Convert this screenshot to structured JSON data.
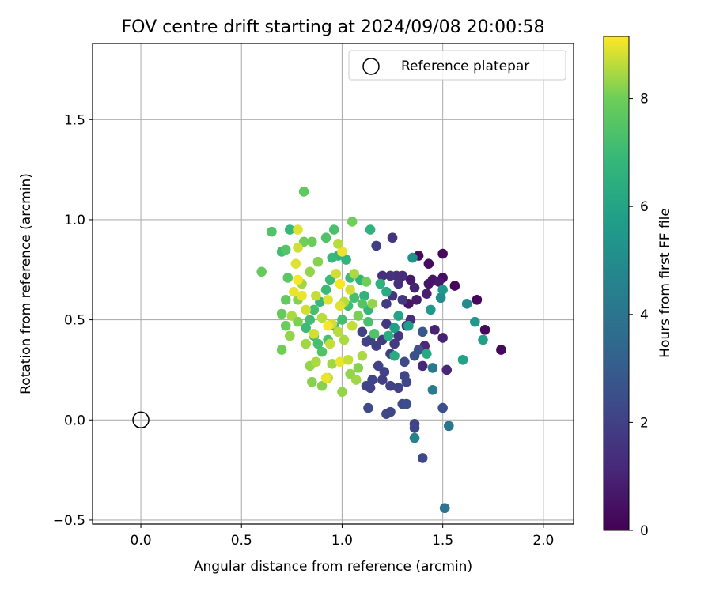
{
  "chart_data": {
    "type": "scatter",
    "title": "FOV centre drift starting at 2024/09/08 20:00:58",
    "xlabel": "Angular distance from reference (arcmin)",
    "ylabel": "Rotation from reference (arcmin)",
    "xlim": [
      -0.24,
      2.15
    ],
    "ylim": [
      -0.52,
      1.88
    ],
    "xticks": [
      0.0,
      0.5,
      1.0,
      1.5,
      2.0
    ],
    "xtick_labels": [
      "0.0",
      "0.5",
      "1.0",
      "1.5",
      "2.0"
    ],
    "yticks": [
      -0.5,
      0.0,
      0.5,
      1.0,
      1.5
    ],
    "ytick_labels": [
      "−0.5",
      "0.0",
      "0.5",
      "1.0",
      "1.5"
    ],
    "grid": true,
    "legend": {
      "position": "top-right",
      "entries": [
        "Reference platepar"
      ]
    },
    "reference_point": {
      "x": 0.0,
      "y": 0.0,
      "label": "Reference platepar"
    },
    "colorbar": {
      "label": "Hours from first FF file",
      "colormap": "viridis",
      "range": [
        0,
        9.15
      ],
      "ticks": [
        0,
        2,
        4,
        6,
        8
      ],
      "tick_labels": [
        "0",
        "2",
        "4",
        "6",
        "8"
      ]
    },
    "points": [
      {
        "x": 1.38,
        "y": 0.82,
        "h": 0.3
      },
      {
        "x": 1.43,
        "y": 0.78,
        "h": 0.3
      },
      {
        "x": 1.5,
        "y": 0.83,
        "h": 0.2
      },
      {
        "x": 1.56,
        "y": 0.67,
        "h": 0.2
      },
      {
        "x": 1.67,
        "y": 0.6,
        "h": 0.2
      },
      {
        "x": 1.71,
        "y": 0.45,
        "h": 0.2
      },
      {
        "x": 1.79,
        "y": 0.35,
        "h": 0.2
      },
      {
        "x": 1.5,
        "y": 0.71,
        "h": 0.4
      },
      {
        "x": 1.45,
        "y": 0.7,
        "h": 0.6
      },
      {
        "x": 1.43,
        "y": 0.68,
        "h": 0.6
      },
      {
        "x": 1.34,
        "y": 0.7,
        "h": 0.7
      },
      {
        "x": 1.33,
        "y": 0.58,
        "h": 0.6
      },
      {
        "x": 1.37,
        "y": 0.6,
        "h": 0.8
      },
      {
        "x": 1.42,
        "y": 0.63,
        "h": 0.9
      },
      {
        "x": 1.48,
        "y": 0.69,
        "h": 0.7
      },
      {
        "x": 1.5,
        "y": 0.41,
        "h": 1.0
      },
      {
        "x": 1.46,
        "y": 0.45,
        "h": 1.0
      },
      {
        "x": 1.41,
        "y": 0.37,
        "h": 1.2
      },
      {
        "x": 1.4,
        "y": 0.27,
        "h": 1.1
      },
      {
        "x": 1.52,
        "y": 0.25,
        "h": 1.1
      },
      {
        "x": 1.36,
        "y": 0.66,
        "h": 1.0
      },
      {
        "x": 1.34,
        "y": 0.5,
        "h": 1.3
      },
      {
        "x": 1.3,
        "y": 0.72,
        "h": 1.3
      },
      {
        "x": 1.27,
        "y": 0.72,
        "h": 1.3
      },
      {
        "x": 1.24,
        "y": 0.72,
        "h": 1.5
      },
      {
        "x": 1.2,
        "y": 0.72,
        "h": 1.3
      },
      {
        "x": 1.25,
        "y": 0.91,
        "h": 1.6
      },
      {
        "x": 1.17,
        "y": 0.87,
        "h": 1.9
      },
      {
        "x": 1.28,
        "y": 0.68,
        "h": 1.4
      },
      {
        "x": 1.25,
        "y": 0.62,
        "h": 1.6
      },
      {
        "x": 1.22,
        "y": 0.58,
        "h": 1.8
      },
      {
        "x": 1.3,
        "y": 0.6,
        "h": 1.7
      },
      {
        "x": 1.32,
        "y": 0.47,
        "h": 1.5
      },
      {
        "x": 1.28,
        "y": 0.42,
        "h": 1.7
      },
      {
        "x": 1.22,
        "y": 0.48,
        "h": 1.7
      },
      {
        "x": 1.26,
        "y": 0.38,
        "h": 1.8
      },
      {
        "x": 1.24,
        "y": 0.33,
        "h": 1.9
      },
      {
        "x": 1.2,
        "y": 0.4,
        "h": 1.8
      },
      {
        "x": 1.17,
        "y": 0.37,
        "h": 1.9
      },
      {
        "x": 1.14,
        "y": 0.4,
        "h": 2.0
      },
      {
        "x": 1.12,
        "y": 0.39,
        "h": 2.0
      },
      {
        "x": 1.1,
        "y": 0.44,
        "h": 2.0
      },
      {
        "x": 1.18,
        "y": 0.27,
        "h": 2.0
      },
      {
        "x": 1.21,
        "y": 0.24,
        "h": 2.1
      },
      {
        "x": 1.15,
        "y": 0.2,
        "h": 2.2
      },
      {
        "x": 1.12,
        "y": 0.17,
        "h": 2.2
      },
      {
        "x": 1.14,
        "y": 0.16,
        "h": 2.0
      },
      {
        "x": 1.2,
        "y": 0.2,
        "h": 1.9
      },
      {
        "x": 1.24,
        "y": 0.17,
        "h": 2.0
      },
      {
        "x": 1.28,
        "y": 0.16,
        "h": 2.1
      },
      {
        "x": 1.31,
        "y": 0.22,
        "h": 2.2
      },
      {
        "x": 1.32,
        "y": 0.19,
        "h": 2.3
      },
      {
        "x": 1.3,
        "y": 0.08,
        "h": 2.4
      },
      {
        "x": 1.32,
        "y": 0.08,
        "h": 2.5
      },
      {
        "x": 1.22,
        "y": 0.03,
        "h": 2.3
      },
      {
        "x": 1.24,
        "y": 0.04,
        "h": 2.2
      },
      {
        "x": 1.13,
        "y": 0.06,
        "h": 2.4
      },
      {
        "x": 1.36,
        "y": -0.02,
        "h": 2.0
      },
      {
        "x": 1.36,
        "y": -0.04,
        "h": 2.2
      },
      {
        "x": 1.4,
        "y": -0.19,
        "h": 2.3
      },
      {
        "x": 1.5,
        "y": 0.06,
        "h": 2.5
      },
      {
        "x": 1.31,
        "y": 0.29,
        "h": 2.4
      },
      {
        "x": 1.36,
        "y": 0.32,
        "h": 2.6
      },
      {
        "x": 1.38,
        "y": 0.35,
        "h": 2.7
      },
      {
        "x": 1.4,
        "y": 0.44,
        "h": 2.8
      },
      {
        "x": 1.35,
        "y": 0.81,
        "h": 5.2
      },
      {
        "x": 1.36,
        "y": -0.09,
        "h": 4.6
      },
      {
        "x": 1.53,
        "y": -0.03,
        "h": 4.0
      },
      {
        "x": 1.51,
        "y": -0.44,
        "h": 4.0
      },
      {
        "x": 1.45,
        "y": 0.15,
        "h": 4.3
      },
      {
        "x": 1.45,
        "y": 0.26,
        "h": 4.2
      },
      {
        "x": 1.49,
        "y": 0.61,
        "h": 5.0
      },
      {
        "x": 1.44,
        "y": 0.55,
        "h": 5.5
      },
      {
        "x": 1.62,
        "y": 0.58,
        "h": 4.9
      },
      {
        "x": 1.66,
        "y": 0.49,
        "h": 5.5
      },
      {
        "x": 1.7,
        "y": 0.4,
        "h": 5.8
      },
      {
        "x": 1.6,
        "y": 0.3,
        "h": 5.9
      },
      {
        "x": 1.5,
        "y": 0.65,
        "h": 5.4
      },
      {
        "x": 1.42,
        "y": 0.33,
        "h": 6.2
      },
      {
        "x": 1.33,
        "y": 0.47,
        "h": 5.7
      },
      {
        "x": 1.28,
        "y": 0.52,
        "h": 6.0
      },
      {
        "x": 1.26,
        "y": 0.46,
        "h": 5.8
      },
      {
        "x": 1.23,
        "y": 0.42,
        "h": 6.4
      },
      {
        "x": 1.26,
        "y": 0.32,
        "h": 6.3
      },
      {
        "x": 1.22,
        "y": 0.64,
        "h": 6.3
      },
      {
        "x": 1.19,
        "y": 0.68,
        "h": 6.6
      },
      {
        "x": 1.14,
        "y": 0.95,
        "h": 6.6
      },
      {
        "x": 1.13,
        "y": 0.55,
        "h": 6.8
      },
      {
        "x": 1.11,
        "y": 0.62,
        "h": 6.6
      },
      {
        "x": 1.09,
        "y": 0.7,
        "h": 6.7
      },
      {
        "x": 1.04,
        "y": 0.71,
        "h": 7.0
      },
      {
        "x": 1.02,
        "y": 0.8,
        "h": 6.7
      },
      {
        "x": 0.98,
        "y": 0.82,
        "h": 6.7
      },
      {
        "x": 0.95,
        "y": 0.81,
        "h": 6.9
      },
      {
        "x": 0.94,
        "y": 0.7,
        "h": 7.0
      },
      {
        "x": 0.92,
        "y": 0.65,
        "h": 7.0
      },
      {
        "x": 0.89,
        "y": 0.59,
        "h": 6.9
      },
      {
        "x": 0.86,
        "y": 0.55,
        "h": 7.2
      },
      {
        "x": 0.84,
        "y": 0.5,
        "h": 7.1
      },
      {
        "x": 0.82,
        "y": 0.46,
        "h": 7.0
      },
      {
        "x": 0.86,
        "y": 0.42,
        "h": 7.1
      },
      {
        "x": 0.88,
        "y": 0.38,
        "h": 7.2
      },
      {
        "x": 0.9,
        "y": 0.34,
        "h": 7.4
      },
      {
        "x": 0.93,
        "y": 0.4,
        "h": 7.3
      },
      {
        "x": 0.96,
        "y": 0.47,
        "h": 7.1
      },
      {
        "x": 1.0,
        "y": 0.5,
        "h": 7.2
      },
      {
        "x": 1.03,
        "y": 0.57,
        "h": 7.1
      },
      {
        "x": 1.06,
        "y": 0.61,
        "h": 7.2
      },
      {
        "x": 1.1,
        "y": 0.58,
        "h": 7.5
      },
      {
        "x": 1.13,
        "y": 0.49,
        "h": 7.3
      },
      {
        "x": 1.16,
        "y": 0.43,
        "h": 7.4
      },
      {
        "x": 0.96,
        "y": 0.95,
        "h": 7.3
      },
      {
        "x": 0.92,
        "y": 0.91,
        "h": 7.4
      },
      {
        "x": 0.74,
        "y": 0.95,
        "h": 6.9
      },
      {
        "x": 0.7,
        "y": 0.84,
        "h": 7.1
      },
      {
        "x": 0.65,
        "y": 0.94,
        "h": 7.4
      },
      {
        "x": 0.72,
        "y": 0.85,
        "h": 7.5
      },
      {
        "x": 0.6,
        "y": 0.74,
        "h": 7.8
      },
      {
        "x": 0.73,
        "y": 0.71,
        "h": 7.6
      },
      {
        "x": 0.72,
        "y": 0.6,
        "h": 7.8
      },
      {
        "x": 0.7,
        "y": 0.53,
        "h": 7.8
      },
      {
        "x": 0.72,
        "y": 0.47,
        "h": 7.9
      },
      {
        "x": 0.7,
        "y": 0.35,
        "h": 8.0
      },
      {
        "x": 0.81,
        "y": 1.14,
        "h": 7.7
      },
      {
        "x": 0.81,
        "y": 0.89,
        "h": 8.0
      },
      {
        "x": 0.85,
        "y": 0.89,
        "h": 7.9
      },
      {
        "x": 0.88,
        "y": 0.79,
        "h": 8.2
      },
      {
        "x": 0.84,
        "y": 0.74,
        "h": 8.3
      },
      {
        "x": 0.8,
        "y": 0.68,
        "h": 8.4
      },
      {
        "x": 0.78,
        "y": 0.6,
        "h": 8.2
      },
      {
        "x": 0.75,
        "y": 0.52,
        "h": 8.5
      },
      {
        "x": 0.74,
        "y": 0.42,
        "h": 8.3
      },
      {
        "x": 0.78,
        "y": 0.49,
        "h": 8.1
      },
      {
        "x": 0.82,
        "y": 0.38,
        "h": 8.4
      },
      {
        "x": 0.84,
        "y": 0.27,
        "h": 8.3
      },
      {
        "x": 0.85,
        "y": 0.19,
        "h": 8.2
      },
      {
        "x": 0.87,
        "y": 0.29,
        "h": 8.5
      },
      {
        "x": 0.9,
        "y": 0.17,
        "h": 8.2
      },
      {
        "x": 0.93,
        "y": 0.21,
        "h": 8.6
      },
      {
        "x": 0.95,
        "y": 0.28,
        "h": 8.4
      },
      {
        "x": 1.0,
        "y": 0.14,
        "h": 8.3
      },
      {
        "x": 1.04,
        "y": 0.23,
        "h": 8.3
      },
      {
        "x": 1.07,
        "y": 0.2,
        "h": 8.4
      },
      {
        "x": 1.08,
        "y": 0.26,
        "h": 8.2
      },
      {
        "x": 1.1,
        "y": 0.32,
        "h": 8.5
      },
      {
        "x": 1.01,
        "y": 0.4,
        "h": 8.5
      },
      {
        "x": 0.98,
        "y": 0.44,
        "h": 8.6
      },
      {
        "x": 0.95,
        "y": 0.48,
        "h": 8.8
      },
      {
        "x": 0.93,
        "y": 0.6,
        "h": 8.9
      },
      {
        "x": 0.97,
        "y": 0.73,
        "h": 8.8
      },
      {
        "x": 1.0,
        "y": 0.84,
        "h": 9.0
      },
      {
        "x": 0.98,
        "y": 0.88,
        "h": 8.6
      },
      {
        "x": 1.05,
        "y": 0.99,
        "h": 8.0
      },
      {
        "x": 1.12,
        "y": 0.69,
        "h": 8.0
      },
      {
        "x": 1.15,
        "y": 0.58,
        "h": 8.3
      },
      {
        "x": 1.08,
        "y": 0.52,
        "h": 8.1
      },
      {
        "x": 1.05,
        "y": 0.47,
        "h": 8.7
      },
      {
        "x": 1.01,
        "y": 0.59,
        "h": 8.6
      },
      {
        "x": 0.9,
        "y": 0.51,
        "h": 8.6
      },
      {
        "x": 0.87,
        "y": 0.62,
        "h": 8.7
      },
      {
        "x": 0.82,
        "y": 0.55,
        "h": 8.8
      },
      {
        "x": 0.8,
        "y": 0.62,
        "h": 9.0
      },
      {
        "x": 0.78,
        "y": 0.7,
        "h": 9.1
      },
      {
        "x": 0.77,
        "y": 0.78,
        "h": 8.9
      },
      {
        "x": 0.78,
        "y": 0.86,
        "h": 8.8
      },
      {
        "x": 0.76,
        "y": 0.64,
        "h": 9.0
      },
      {
        "x": 0.78,
        "y": 0.95,
        "h": 8.9
      },
      {
        "x": 0.86,
        "y": 0.43,
        "h": 8.8
      },
      {
        "x": 0.93,
        "y": 0.47,
        "h": 9.1
      },
      {
        "x": 0.92,
        "y": 0.21,
        "h": 9.0
      },
      {
        "x": 0.99,
        "y": 0.29,
        "h": 9.0
      },
      {
        "x": 1.03,
        "y": 0.3,
        "h": 8.7
      },
      {
        "x": 0.94,
        "y": 0.38,
        "h": 8.7
      },
      {
        "x": 0.99,
        "y": 0.57,
        "h": 8.9
      },
      {
        "x": 1.04,
        "y": 0.65,
        "h": 8.8
      },
      {
        "x": 1.06,
        "y": 0.73,
        "h": 8.5
      },
      {
        "x": 0.99,
        "y": 0.68,
        "h": 9.1
      }
    ]
  }
}
